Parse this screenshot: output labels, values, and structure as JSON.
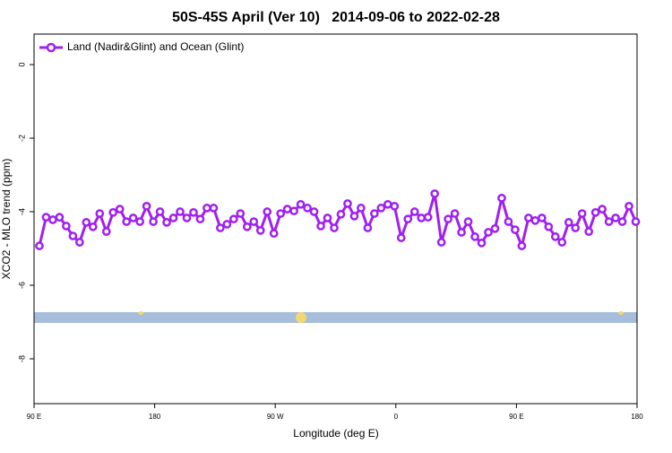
{
  "chart_data": {
    "type": "line",
    "title": "50S-45S April (Ver 10)   2014-09-06 to 2022-02-28",
    "x_label": "Longitude (deg E)",
    "y_label": "XCO2 - MLO trend (ppm)",
    "xlim": [
      90,
      540
    ],
    "ylim": [
      -9.22,
      0.83
    ],
    "xticks": [
      {
        "value": 90,
        "label": "90 E"
      },
      {
        "value": 180,
        "label": "180"
      },
      {
        "value": 270,
        "label": "90 W"
      },
      {
        "value": 360,
        "label": "0"
      },
      {
        "value": 450,
        "label": "90 E"
      },
      {
        "value": 540,
        "label": "180"
      }
    ],
    "yticks": [
      0,
      -2,
      -4,
      -6,
      -8
    ],
    "legend_position": "top-left",
    "x": [
      94,
      99,
      104,
      109,
      114,
      119,
      124,
      129,
      134,
      139,
      144,
      149,
      154,
      159,
      164,
      169,
      174,
      179,
      184,
      189,
      194,
      199,
      204,
      209,
      214,
      219,
      224,
      229,
      234,
      239,
      244,
      249,
      254,
      259,
      264,
      269,
      274,
      279,
      284,
      289,
      294,
      299,
      304,
      309,
      314,
      319,
      324,
      329,
      334,
      339,
      344,
      349,
      354,
      359,
      364,
      369,
      374,
      379,
      384,
      389,
      394,
      399,
      404,
      409,
      414,
      419,
      424,
      429,
      434,
      439,
      444,
      449,
      454,
      459,
      464,
      469,
      474,
      479,
      484,
      489,
      494,
      499,
      504,
      509,
      514,
      519,
      524,
      529,
      534,
      539
    ],
    "series": [
      {
        "name": "Land (Nadir&Glint) and Ocean (Glint)",
        "color": "#a020f0",
        "values": [
          -4.93,
          -4.15,
          -4.22,
          -4.15,
          -4.39,
          -4.66,
          -4.83,
          -4.29,
          -4.41,
          -4.05,
          -4.54,
          -4.02,
          -3.93,
          -4.27,
          -4.17,
          -4.27,
          -3.85,
          -4.27,
          -4.0,
          -4.29,
          -4.17,
          -4.0,
          -4.17,
          -4.02,
          -4.2,
          -3.9,
          -3.9,
          -4.44,
          -4.34,
          -4.2,
          -4.05,
          -4.41,
          -4.27,
          -4.51,
          -4.0,
          -4.59,
          -4.05,
          -3.93,
          -3.98,
          -3.8,
          -3.9,
          -4.0,
          -4.39,
          -4.17,
          -4.44,
          -4.07,
          -3.78,
          -4.12,
          -3.9,
          -4.44,
          -4.05,
          -3.9,
          -3.8,
          -3.85,
          -4.71,
          -4.2,
          -4.0,
          -4.17,
          -4.15,
          -3.51,
          -4.83,
          -4.2,
          -4.05,
          -4.56,
          -4.27,
          -4.68,
          -4.85,
          -4.56,
          -4.46,
          -3.63,
          -4.27,
          -4.49,
          -4.93,
          -4.17,
          -4.24,
          -4.17,
          -4.41,
          -4.68,
          -4.83,
          -4.29,
          -4.44,
          -4.05,
          -4.54,
          -4.02,
          -3.93,
          -4.27,
          -4.17,
          -4.27,
          -3.85,
          -4.27
        ]
      }
    ]
  }
}
